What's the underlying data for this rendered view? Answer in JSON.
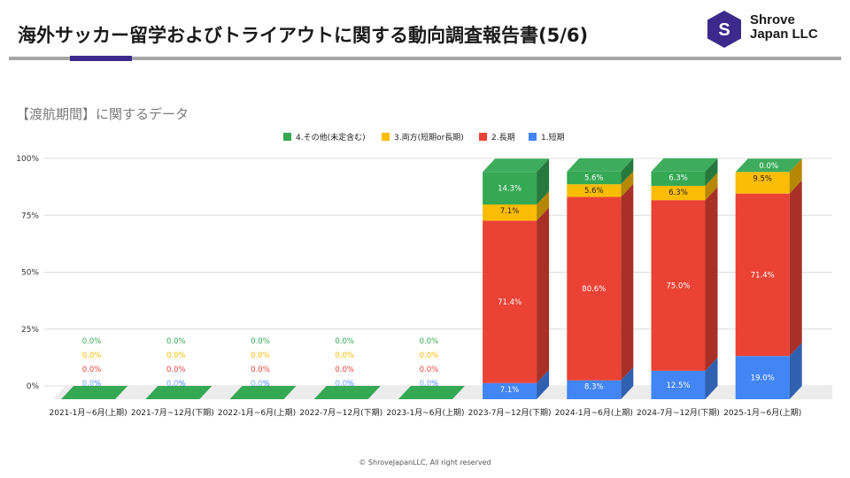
{
  "header": {
    "title": "海外サッカー留学およびトライアウトに関する動向調査報告書(5/6)",
    "logo_letter": "S",
    "company_line1": "Shrove",
    "company_line2": "Japan LLC",
    "accent_color": "#3b2a8c"
  },
  "subtitle": "【渡航期間】に関するデータ",
  "footer": "© ShroveJapanLLC, All right reserved",
  "chart_data": {
    "type": "bar",
    "stacked": true,
    "style": "3d",
    "categories": [
      "2021-1月~6月(上期)",
      "2021-7月~12月(下期)",
      "2022-1月~6月(上期)",
      "2022-7月~12月(下期)",
      "2023-1月~6月(上期)",
      "2023-7月~12月(下期)",
      "2024-1月~6月(上期)",
      "2024-7月~12月(下期)",
      "2025-1月~6月(上期)"
    ],
    "series": [
      {
        "name": "1.短期",
        "color": "#4285f4",
        "values": [
          0,
          0,
          0,
          0,
          0,
          7.1,
          8.3,
          12.5,
          19.0
        ],
        "labels": [
          "0.0%",
          "0.0%",
          "0.0%",
          "0.0%",
          "0.0%",
          "7.1%",
          "8.3%",
          "12.5%",
          "19.0%"
        ]
      },
      {
        "name": "2.長期",
        "color": "#ea4335",
        "values": [
          0,
          0,
          0,
          0,
          0,
          71.4,
          80.6,
          75.0,
          71.4
        ],
        "labels": [
          "0.0%",
          "0.0%",
          "0.0%",
          "0.0%",
          "0.0%",
          "71.4%",
          "80.6%",
          "75.0%",
          "71.4%"
        ]
      },
      {
        "name": "3.両方(短期or長期)",
        "color": "#fbbc04",
        "values": [
          0,
          0,
          0,
          0,
          0,
          7.1,
          5.6,
          6.3,
          9.5
        ],
        "labels": [
          "0.0%",
          "0.0%",
          "0.0%",
          "0.0%",
          "0.0%",
          "7.1%",
          "5.6%",
          "6.3%",
          "9.5%"
        ]
      },
      {
        "name": "4.その他(未定含む)",
        "color": "#34a853",
        "values": [
          0,
          0,
          0,
          0,
          0,
          14.3,
          5.6,
          6.3,
          0.0
        ],
        "labels": [
          "0.0%",
          "0.0%",
          "0.0%",
          "0.0%",
          "0.0%",
          "14.3%",
          "5.6%",
          "6.3%",
          "0.0%"
        ]
      }
    ],
    "legend_order": [
      "4.その他(未定含む)",
      "3.両方(短期or長期)",
      "2.長期",
      "1.短期"
    ],
    "yticks": [
      "0%",
      "25%",
      "50%",
      "75%",
      "100%"
    ],
    "ylim": [
      0,
      100
    ],
    "legend_position": "top",
    "grid": true
  }
}
